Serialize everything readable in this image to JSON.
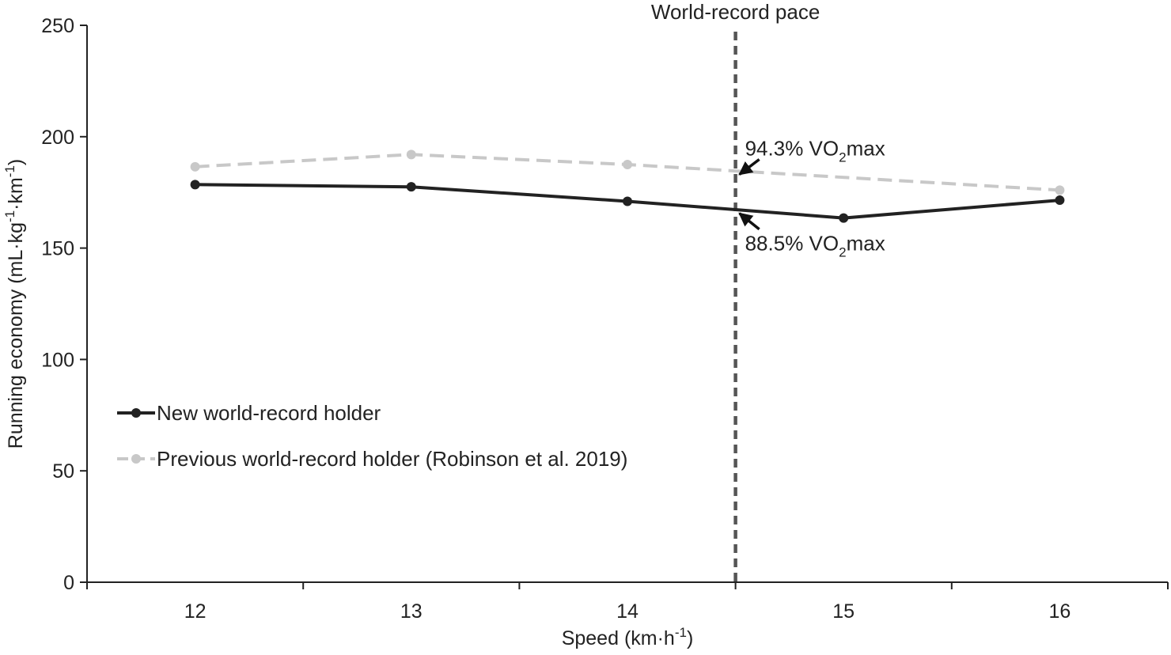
{
  "chart_data": {
    "type": "line",
    "x": [
      12,
      13,
      14,
      15,
      16
    ],
    "series": [
      {
        "name": "New world-record holder",
        "values": [
          178.5,
          177.5,
          171,
          163.5,
          171.5
        ],
        "color": "#222222",
        "line_style": "solid"
      },
      {
        "name": "Previous world-record holder (Robinson et al. 2019)",
        "values": [
          186.5,
          192,
          187.5,
          null,
          176
        ],
        "color": "#c8c8c8",
        "line_style": "dashed"
      }
    ],
    "xlabel": {
      "text": "Speed (km·h",
      "sup": "-1",
      "end": ")"
    },
    "ylabel": {
      "parts": [
        {
          "t": "Running economy (mL·kg"
        },
        {
          "t": "-1",
          "sup": true
        },
        {
          "t": "·km"
        },
        {
          "t": "-1",
          "sup": true
        },
        {
          "t": ")"
        }
      ]
    },
    "xlim": [
      11.5,
      16.5
    ],
    "ylim": [
      0,
      250
    ],
    "x_ticks": [
      12,
      13,
      14,
      15,
      16
    ],
    "y_ticks": [
      0,
      50,
      100,
      150,
      200,
      250
    ],
    "grid": false,
    "legend_position": "left",
    "reference_line": {
      "x": 14.5,
      "label": "World-record pace",
      "color": "#555555",
      "style": "dashed"
    },
    "annotations": [
      {
        "pre": "94.3% VO",
        "sub": "2",
        "post": "max",
        "x": 14.5,
        "y": 182
      },
      {
        "pre": "88.5% VO",
        "sub": "2",
        "post": "max",
        "x": 14.5,
        "y": 167
      }
    ]
  }
}
